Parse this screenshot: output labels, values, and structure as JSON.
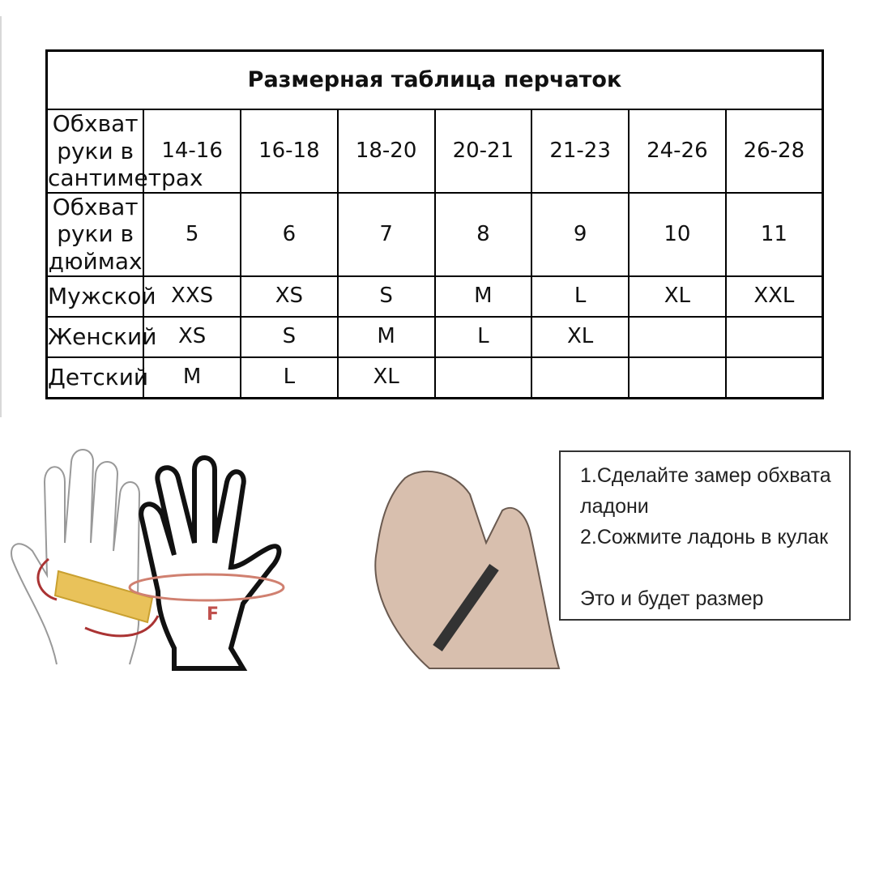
{
  "table": {
    "title": "Размерная таблица перчаток",
    "rows": [
      {
        "label": "Обхват руки в сантиметрах",
        "cells": [
          "14-16",
          "16-18",
          "18-20",
          "20-21",
          "21-23",
          "24-26",
          "26-28"
        ]
      },
      {
        "label": "Обхват руки в дюймах",
        "cells": [
          "5",
          "6",
          "7",
          "8",
          "9",
          "10",
          "11"
        ]
      },
      {
        "label": "Мужской",
        "cells": [
          "XXS",
          "XS",
          "S",
          "M",
          "L",
          "XL",
          "XXL"
        ]
      },
      {
        "label": "Женский",
        "cells": [
          "XS",
          "S",
          "M",
          "L",
          "XL",
          "",
          ""
        ]
      },
      {
        "label": "Детский",
        "cells": [
          "M",
          "L",
          "XL",
          "",
          "",
          "",
          ""
        ]
      }
    ]
  },
  "illustration": {
    "label_f": "F"
  },
  "instructions": {
    "step1": "1.Сделайте замер обхвата ладони",
    "step2": "2.Сожмите ладонь в кулак",
    "result": "Это и будет размер"
  }
}
